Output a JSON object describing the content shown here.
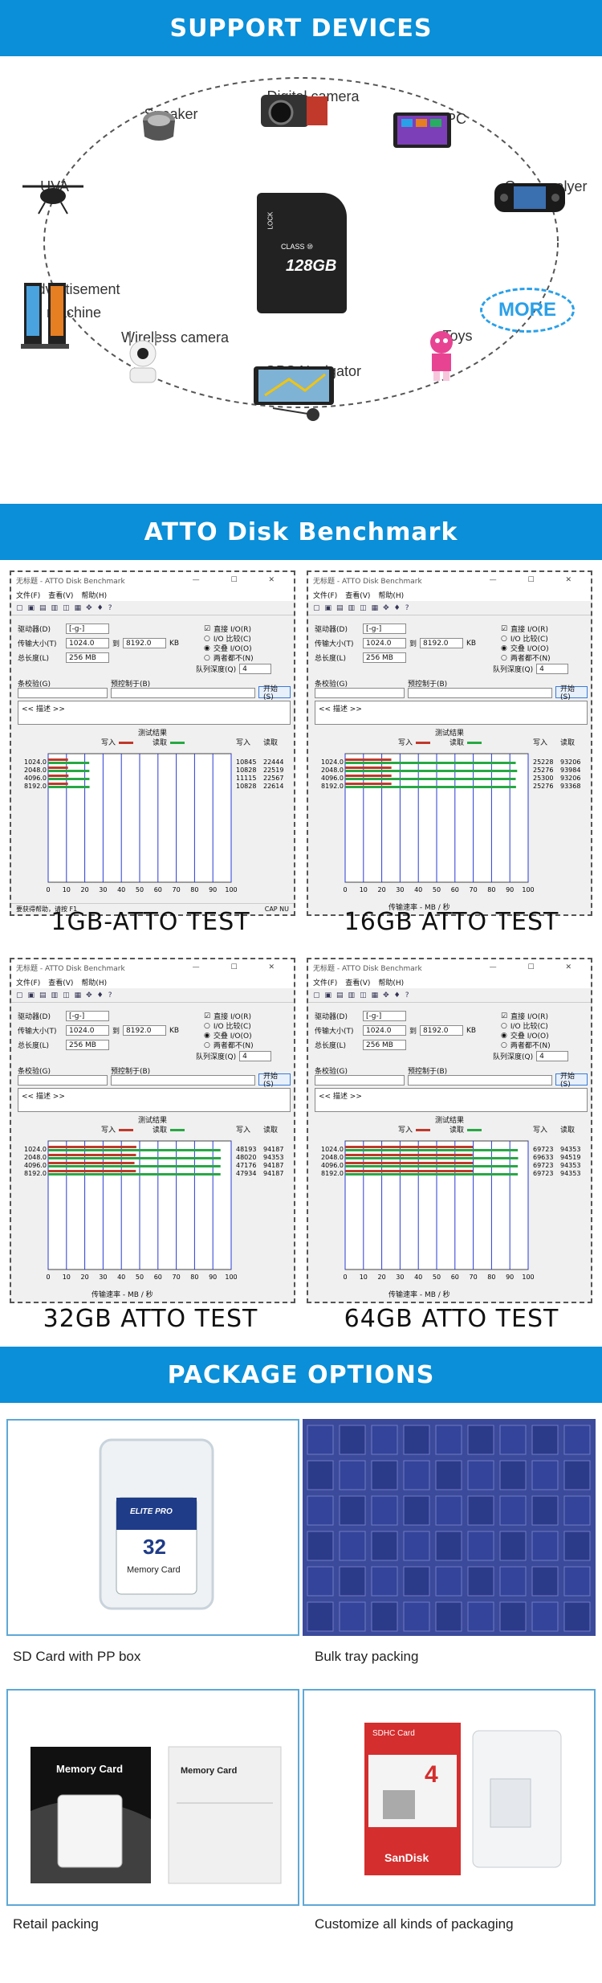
{
  "sections": {
    "support_title": "SUPPORT DEVICES",
    "atto_title": "ATTO Disk Benchmark",
    "package_title": "PACKAGE  OPTIONS"
  },
  "devices": {
    "speaker": "Speaker",
    "camera": "Digital camera",
    "tablet": "Tablet PC",
    "uva": "UVA",
    "game": "Game palyer",
    "ad_line1": "Advertisement",
    "ad_line2": "machine",
    "more": "MORE",
    "wireless": "Wireless camera",
    "toys": "Toys",
    "gps": "GPS Navigator",
    "card_capacity": "128GB",
    "card_class": "CLASS ⑩",
    "card_lock": "LOCK"
  },
  "atto_ui": {
    "title": "无标题 - ATTO Disk Benchmark",
    "menu": [
      "文件(F)",
      "查看(V)",
      "帮助(H)"
    ],
    "drive_label": "驱动器(D)",
    "drive_value": "[-g-]",
    "transfer_label": "传输大小(T)",
    "transfer_from": "1024.0",
    "transfer_to_label": "到",
    "transfer_to": "8192.0",
    "kb": "KB",
    "total_label": "总长度(L)",
    "total_value": "256 MB",
    "direct_io": "直接 I/O(R)",
    "io_compare": "I/O 比较(C)",
    "overlapped": "交叠 I/O(O)",
    "neither": "两者都不(N)",
    "queue_label": "队列深度(Q)",
    "queue_value": "4",
    "condition_label": "条校验(G)",
    "control_label": "预控制于(B)",
    "start": "开始(S)",
    "desc": "<< 描述 >>",
    "results": "测试结果",
    "write": "写入",
    "read": "读取",
    "xlabel": "传输速率 - MB / 秒",
    "status_left": "要获得帮助，请按 F1",
    "status_right": "CAP  NU"
  },
  "atto_tests": [
    {
      "caption": "1GB-ATTO TEST",
      "rows": [
        {
          "size": "1024.0",
          "write": 10845,
          "read": 22444
        },
        {
          "size": "2048.0",
          "write": 10828,
          "read": 22519
        },
        {
          "size": "4096.0",
          "write": 11115,
          "read": 22567
        },
        {
          "size": "8192.0",
          "write": 10828,
          "read": 22614
        }
      ]
    },
    {
      "caption": "16GB ATTO TEST",
      "rows": [
        {
          "size": "1024.0",
          "write": 25228,
          "read": 93206
        },
        {
          "size": "2048.0",
          "write": 25276,
          "read": 93984
        },
        {
          "size": "4096.0",
          "write": 25300,
          "read": 93206
        },
        {
          "size": "8192.0",
          "write": 25276,
          "read": 93368
        }
      ]
    },
    {
      "caption": "32GB ATTO TEST",
      "rows": [
        {
          "size": "1024.0",
          "write": 48193,
          "read": 94187
        },
        {
          "size": "2048.0",
          "write": 48020,
          "read": 94353
        },
        {
          "size": "4096.0",
          "write": 47176,
          "read": 94187
        },
        {
          "size": "8192.0",
          "write": 47934,
          "read": 94187
        }
      ]
    },
    {
      "caption": "64GB ATTO TEST",
      "rows": [
        {
          "size": "1024.0",
          "write": 69723,
          "read": 94353
        },
        {
          "size": "2048.0",
          "write": 69633,
          "read": 94519
        },
        {
          "size": "4096.0",
          "write": 69723,
          "read": 94353
        },
        {
          "size": "8192.0",
          "write": 69723,
          "read": 94353
        }
      ]
    }
  ],
  "atto_axis": [
    "0",
    "10",
    "20",
    "30",
    "40",
    "50",
    "60",
    "70",
    "80",
    "90",
    "100"
  ],
  "packages": {
    "pp_box": "SD Card with PP box",
    "bulk": "Bulk tray packing",
    "retail": "Retail packing",
    "custom": "Customize all kinds of packaging",
    "pp_card_brand": "ELITE PRO",
    "pp_card_cap": "32",
    "pp_card_text": "Memory Card",
    "retail_card_text": "Memory Card",
    "custom_card_title": "SDHC Card",
    "custom_card_cap": "4",
    "custom_card_brand": "SanDisk"
  },
  "colors": {
    "accent": "#0a8fd8",
    "write_bar": "#c0392b",
    "read_bar": "#27a844",
    "grid_line": "#2a3bd4"
  }
}
